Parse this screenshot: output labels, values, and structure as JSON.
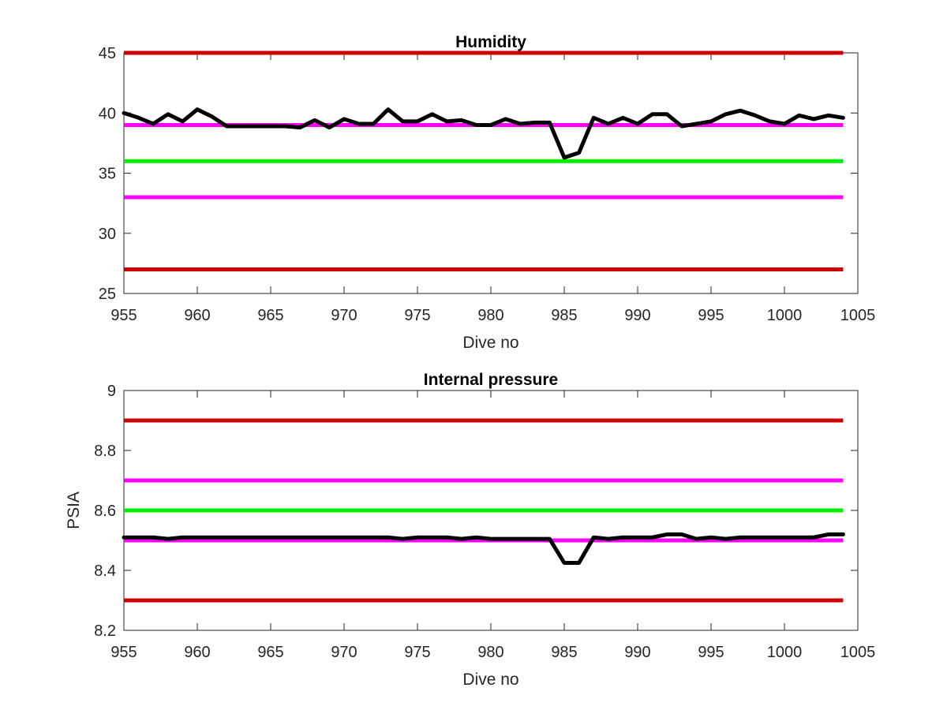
{
  "colors": {
    "red_limit": "#cc0000",
    "magenta_limit": "#ff00ff",
    "green_target": "#00ee00",
    "data_line": "#000000",
    "axes": "#262626"
  },
  "chart_data": [
    {
      "type": "line",
      "title": "Humidity",
      "xlabel": "Dive no",
      "ylabel": "",
      "xlim": [
        955,
        1005
      ],
      "ylim": [
        25,
        45
      ],
      "xticks": [
        955,
        960,
        965,
        970,
        975,
        980,
        985,
        990,
        995,
        1000,
        1005
      ],
      "yticks": [
        25,
        30,
        35,
        40,
        45
      ],
      "grid": false,
      "hlines": [
        {
          "y": 45,
          "color": "#cc0000"
        },
        {
          "y": 39,
          "color": "#ff00ff"
        },
        {
          "y": 36,
          "color": "#00ee00"
        },
        {
          "y": 33,
          "color": "#ff00ff"
        },
        {
          "y": 27,
          "color": "#cc0000"
        }
      ],
      "hline_x_range": [
        955,
        1004
      ],
      "x": [
        955,
        956,
        957,
        958,
        959,
        960,
        961,
        962,
        963,
        964,
        965,
        966,
        967,
        968,
        969,
        970,
        971,
        972,
        973,
        974,
        975,
        976,
        977,
        978,
        979,
        980,
        981,
        982,
        983,
        984,
        985,
        986,
        987,
        988,
        989,
        990,
        991,
        992,
        993,
        994,
        995,
        996,
        997,
        998,
        999,
        1000,
        1001,
        1002,
        1003,
        1004
      ],
      "y": [
        40.0,
        39.6,
        39.1,
        39.9,
        39.3,
        40.3,
        39.7,
        38.9,
        38.9,
        38.9,
        38.9,
        38.9,
        38.8,
        39.4,
        38.8,
        39.5,
        39.1,
        39.1,
        40.3,
        39.3,
        39.3,
        39.9,
        39.3,
        39.4,
        39.0,
        39.0,
        39.5,
        39.1,
        39.2,
        39.2,
        36.3,
        36.7,
        39.6,
        39.1,
        39.6,
        39.1,
        39.9,
        39.9,
        38.9,
        39.1,
        39.3,
        39.9,
        40.2,
        39.8,
        39.3,
        39.1,
        39.8,
        39.5,
        39.8,
        39.6
      ]
    },
    {
      "type": "line",
      "title": "Internal pressure",
      "xlabel": "Dive no",
      "ylabel": "PSIA",
      "xlim": [
        955,
        1005
      ],
      "ylim": [
        8.2,
        9
      ],
      "xticks": [
        955,
        960,
        965,
        970,
        975,
        980,
        985,
        990,
        995,
        1000,
        1005
      ],
      "yticks": [
        8.2,
        8.4,
        8.6,
        8.8,
        9
      ],
      "grid": false,
      "hlines": [
        {
          "y": 8.9,
          "color": "#cc0000"
        },
        {
          "y": 8.7,
          "color": "#ff00ff"
        },
        {
          "y": 8.6,
          "color": "#00ee00"
        },
        {
          "y": 8.5,
          "color": "#ff00ff"
        },
        {
          "y": 8.3,
          "color": "#cc0000"
        }
      ],
      "hline_x_range": [
        955,
        1004
      ],
      "x": [
        955,
        956,
        957,
        958,
        959,
        960,
        961,
        962,
        963,
        964,
        965,
        966,
        967,
        968,
        969,
        970,
        971,
        972,
        973,
        974,
        975,
        976,
        977,
        978,
        979,
        980,
        981,
        982,
        983,
        984,
        985,
        986,
        987,
        988,
        989,
        990,
        991,
        992,
        993,
        994,
        995,
        996,
        997,
        998,
        999,
        1000,
        1001,
        1002,
        1003,
        1004
      ],
      "y": [
        8.51,
        8.51,
        8.51,
        8.505,
        8.51,
        8.51,
        8.51,
        8.51,
        8.51,
        8.51,
        8.51,
        8.51,
        8.51,
        8.51,
        8.51,
        8.51,
        8.51,
        8.51,
        8.51,
        8.505,
        8.51,
        8.51,
        8.51,
        8.505,
        8.51,
        8.505,
        8.505,
        8.505,
        8.505,
        8.505,
        8.425,
        8.425,
        8.51,
        8.505,
        8.51,
        8.51,
        8.51,
        8.52,
        8.52,
        8.505,
        8.51,
        8.505,
        8.51,
        8.51,
        8.51,
        8.51,
        8.51,
        8.51,
        8.52,
        8.52
      ]
    }
  ]
}
